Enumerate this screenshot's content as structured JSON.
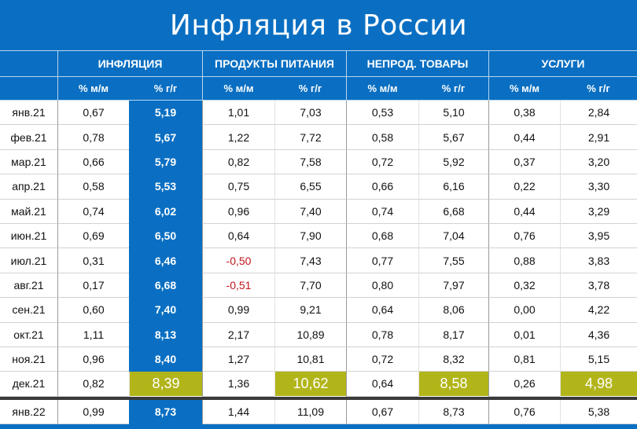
{
  "title": "Инфляция в России",
  "colors": {
    "background": "#0a6fc2",
    "highlight_column": "#0a6fc2",
    "december_highlight": "#b2b51a",
    "negative_value": "#c0161c"
  },
  "chart_data": {
    "type": "table",
    "title": "Инфляция в России",
    "groups": [
      "ИНФЛЯЦИЯ",
      "ПРОДУКТЫ ПИТАНИЯ",
      "НЕПРОД. ТОВАРЫ",
      "УСЛУГИ"
    ],
    "subheaders": [
      "% м/м",
      "% г/г"
    ],
    "rows": [
      {
        "month": "янв.21",
        "values": [
          "0,67",
          "5,19",
          "1,01",
          "7,03",
          "0,53",
          "5,10",
          "0,38",
          "2,84"
        ]
      },
      {
        "month": "фев.21",
        "values": [
          "0,78",
          "5,67",
          "1,22",
          "7,72",
          "0,58",
          "5,67",
          "0,44",
          "2,91"
        ]
      },
      {
        "month": "мар.21",
        "values": [
          "0,66",
          "5,79",
          "0,82",
          "7,58",
          "0,72",
          "5,92",
          "0,37",
          "3,20"
        ]
      },
      {
        "month": "апр.21",
        "values": [
          "0,58",
          "5,53",
          "0,75",
          "6,55",
          "0,66",
          "6,16",
          "0,22",
          "3,30"
        ]
      },
      {
        "month": "май.21",
        "values": [
          "0,74",
          "6,02",
          "0,96",
          "7,40",
          "0,74",
          "6,68",
          "0,44",
          "3,29"
        ]
      },
      {
        "month": "июн.21",
        "values": [
          "0,69",
          "6,50",
          "0,64",
          "7,90",
          "0,68",
          "7,04",
          "0,76",
          "3,95"
        ]
      },
      {
        "month": "июл.21",
        "values": [
          "0,31",
          "6,46",
          "-0,50",
          "7,43",
          "0,77",
          "7,55",
          "0,88",
          "3,83"
        ]
      },
      {
        "month": "авг.21",
        "values": [
          "0,17",
          "6,68",
          "-0,51",
          "7,70",
          "0,80",
          "7,97",
          "0,32",
          "3,78"
        ]
      },
      {
        "month": "сен.21",
        "values": [
          "0,60",
          "7,40",
          "0,99",
          "9,21",
          "0,64",
          "8,06",
          "0,00",
          "4,22"
        ]
      },
      {
        "month": "окт.21",
        "values": [
          "1,11",
          "8,13",
          "2,17",
          "10,89",
          "0,78",
          "8,17",
          "0,01",
          "4,36"
        ]
      },
      {
        "month": "ноя.21",
        "values": [
          "0,96",
          "8,40",
          "1,27",
          "10,81",
          "0,72",
          "8,32",
          "0,81",
          "5,15"
        ]
      },
      {
        "month": "дек.21",
        "values": [
          "0,82",
          "8,39",
          "1,36",
          "10,62",
          "0,64",
          "8,58",
          "0,26",
          "4,98"
        ]
      },
      {
        "month": "янв.22",
        "values": [
          "0,99",
          "8,73",
          "1,44",
          "11,09",
          "0,67",
          "8,73",
          "0,76",
          "5,38"
        ]
      }
    ]
  }
}
